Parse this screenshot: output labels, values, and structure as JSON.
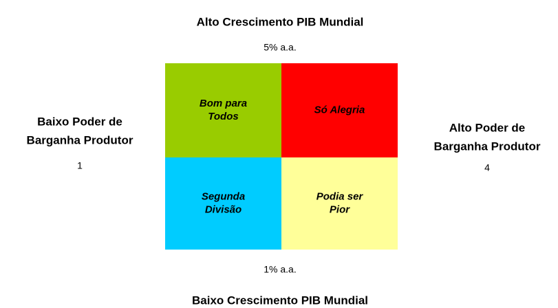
{
  "top": {
    "title": "Alto Crescimento PIB Mundial",
    "value": "5% a.a."
  },
  "bottom": {
    "title": "Baixo Crescimento PIB Mundial",
    "value": "1% a.a."
  },
  "left": {
    "lines": [
      "Baixo Poder de",
      "Barganha Produtor"
    ],
    "value": "1"
  },
  "right": {
    "lines": [
      "Alto Poder de",
      "Barganha Produtor"
    ],
    "value": "4"
  },
  "quadrants": [
    {
      "lines": [
        "Bom para",
        "Todos"
      ],
      "color": "#99cc00"
    },
    {
      "lines": [
        "Só Alegria"
      ],
      "color": "#ff0000"
    },
    {
      "lines": [
        "Segunda",
        "Divisão"
      ],
      "color": "#00ccff"
    },
    {
      "lines": [
        "Podia ser",
        "Pior"
      ],
      "color": "#ffff99"
    }
  ]
}
